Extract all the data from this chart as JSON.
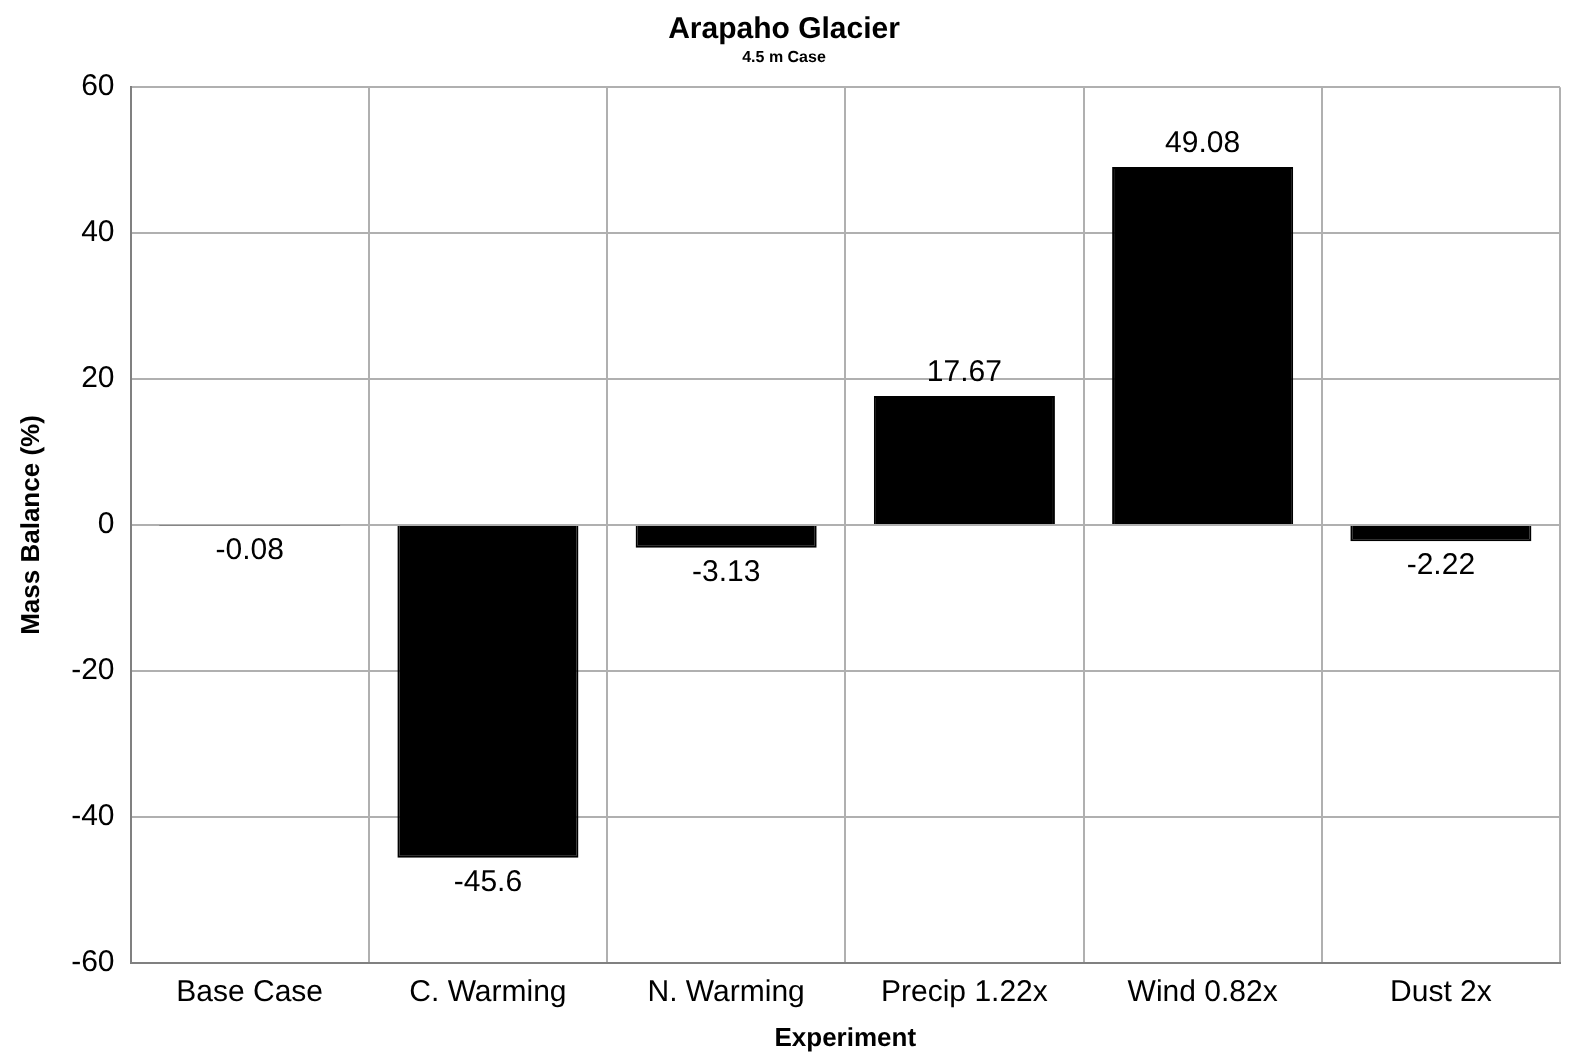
{
  "chart_data": {
    "type": "bar",
    "title": "Arapaho Glacier",
    "subtitle": "4.5 m Case",
    "xlabel": "Experiment",
    "ylabel": "Mass Balance (%)",
    "categories": [
      "Base Case",
      "C. Warming",
      "N. Warming",
      "Precip 1.22x",
      "Wind 0.82x",
      "Dust 2x"
    ],
    "values": [
      -0.08,
      -45.6,
      -3.13,
      17.67,
      49.08,
      -2.22
    ],
    "color": "#000000",
    "ylim": [
      -60,
      60
    ],
    "yticks": [
      -60,
      -40,
      -20,
      0,
      20,
      40,
      60
    ],
    "grid": true,
    "legend": false,
    "data_labels": true
  }
}
